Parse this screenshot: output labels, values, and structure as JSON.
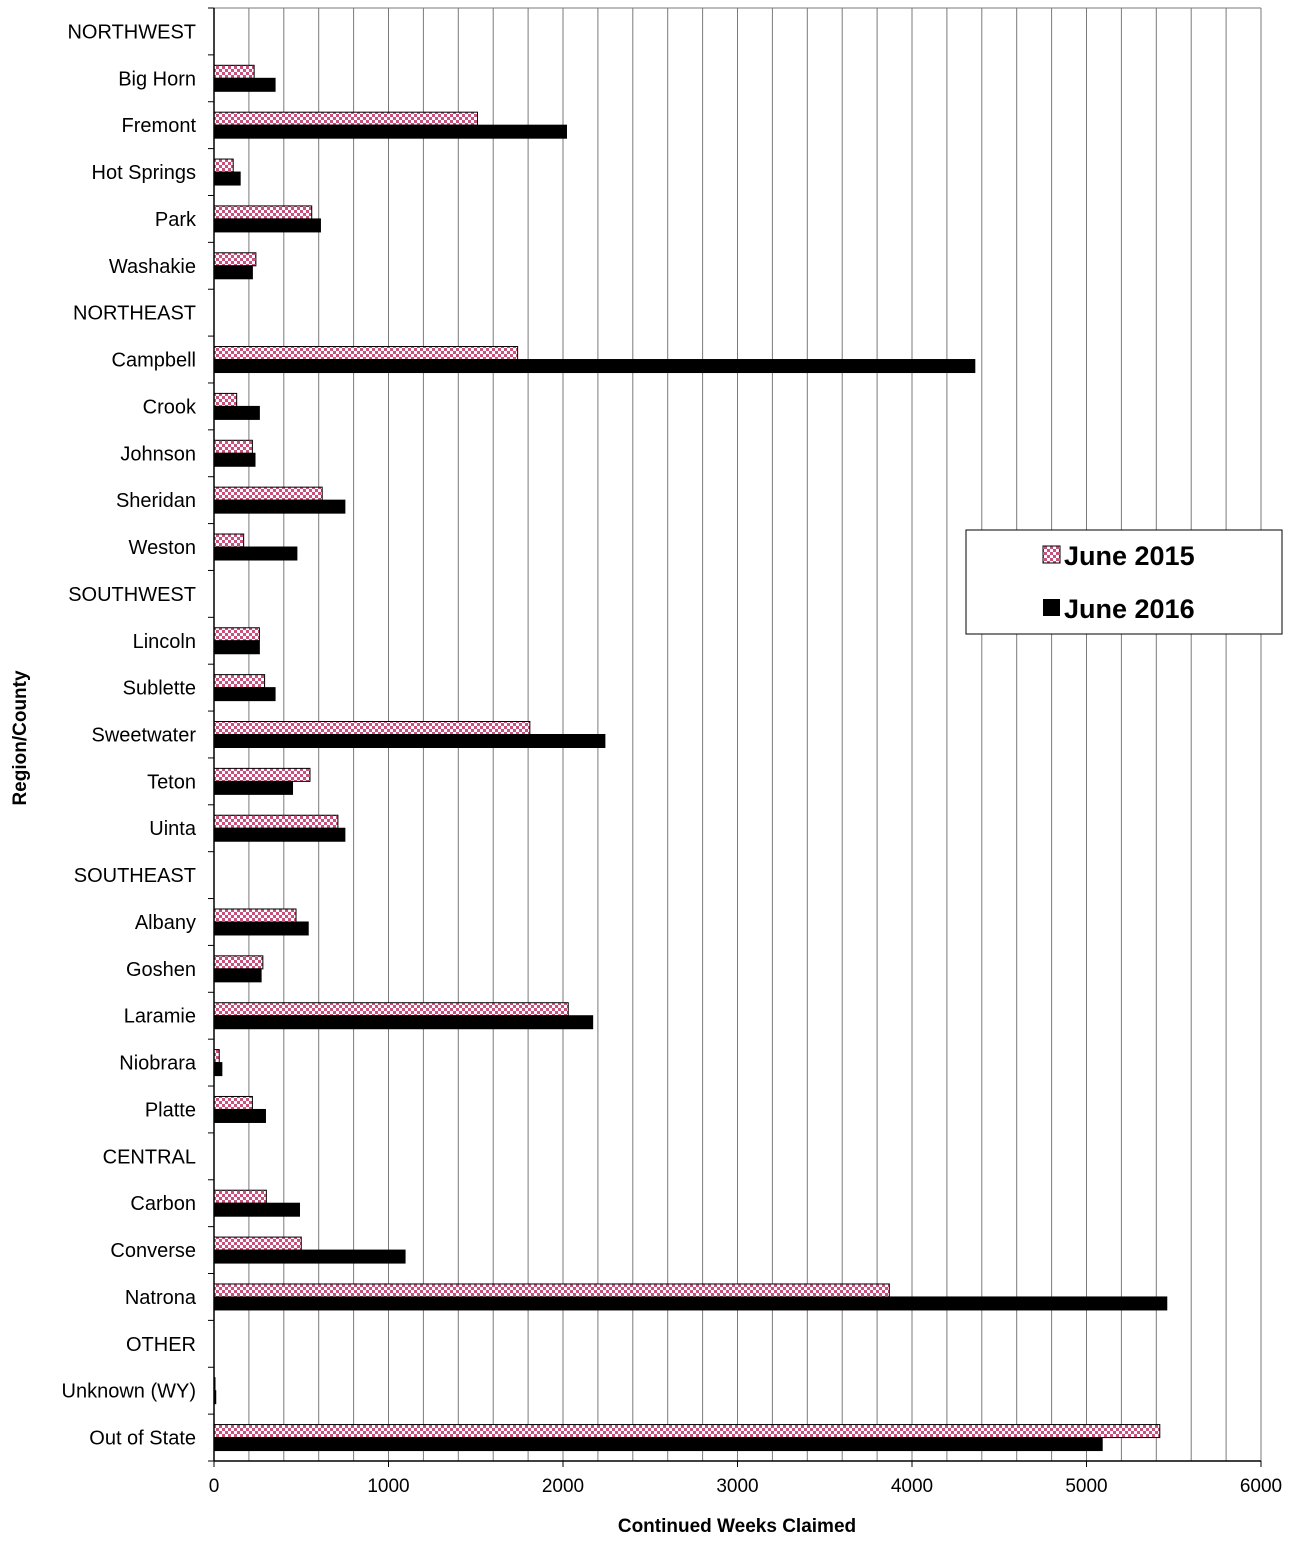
{
  "chart_data": {
    "type": "bar",
    "orientation": "horizontal",
    "title": "",
    "xlabel": "Continued Weeks Claimed",
    "ylabel": "Region/County",
    "xlim": [
      0,
      6000
    ],
    "x_ticks": [
      "0",
      "1000",
      "2000",
      "3000",
      "4000",
      "5000",
      "6000"
    ],
    "grid": "vertical every 200",
    "legend_position": "right",
    "categories": [
      "NORTHWEST",
      "Big Horn",
      "Fremont",
      "Hot Springs",
      "Park",
      "Washakie",
      "NORTHEAST",
      "Campbell",
      "Crook",
      "Johnson",
      "Sheridan",
      "Weston",
      "SOUTHWEST",
      "Lincoln",
      "Sublette",
      "Sweetwater",
      "Teton",
      "Uinta",
      "SOUTHEAST",
      "Albany",
      "Goshen",
      "Laramie",
      "Niobrara",
      "Platte",
      "CENTRAL",
      "Carbon",
      "Converse",
      "Natrona",
      "OTHER",
      "Unknown (WY)",
      "Out of State"
    ],
    "series": [
      {
        "name": "June 2015",
        "color": "#c8507a",
        "pattern": "checker",
        "values": [
          null,
          230,
          1510,
          110,
          560,
          240,
          null,
          1740,
          130,
          220,
          620,
          170,
          null,
          260,
          290,
          1810,
          550,
          710,
          null,
          470,
          280,
          2030,
          30,
          220,
          null,
          300,
          500,
          3870,
          null,
          5,
          5420
        ]
      },
      {
        "name": "June 2016",
        "color": "#000000",
        "pattern": "solid",
        "values": [
          null,
          350,
          2020,
          150,
          610,
          220,
          null,
          4360,
          260,
          235,
          750,
          475,
          null,
          260,
          350,
          2240,
          450,
          750,
          null,
          540,
          270,
          2170,
          45,
          295,
          null,
          490,
          1095,
          5460,
          null,
          10,
          5090
        ]
      }
    ]
  }
}
